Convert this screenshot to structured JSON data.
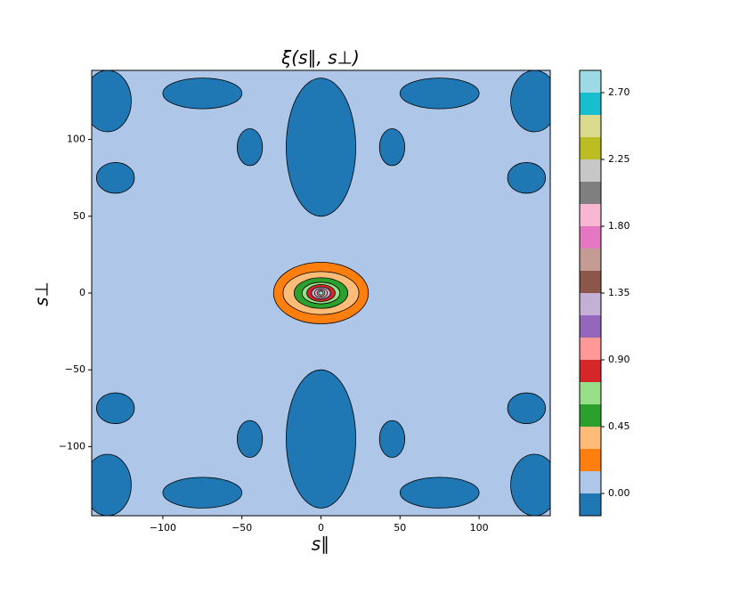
{
  "chart_data": {
    "type": "contour",
    "title": "ξ(s∥, s⊥)",
    "x_label": "s∥",
    "y_label": "s⊥",
    "xlim": [
      -145,
      145
    ],
    "ylim": [
      -145,
      145
    ],
    "xticks": [
      {
        "value": -100,
        "label": "−100"
      },
      {
        "value": -50,
        "label": "−50"
      },
      0,
      50,
      100
    ],
    "yticks": [
      {
        "value": -100,
        "label": "−100"
      },
      {
        "value": -50,
        "label": "−50"
      },
      0,
      50,
      100
    ],
    "levels": [
      -0.15,
      0,
      0.15,
      0.3,
      0.45,
      0.6,
      0.75,
      0.9,
      1.05,
      1.2,
      1.35,
      1.5,
      1.65,
      1.8,
      1.95,
      2.1,
      2.25,
      2.4,
      2.55,
      2.7,
      2.85
    ],
    "colors": [
      "#1f77b4",
      "#aec7e8",
      "#ff7f0e",
      "#ffbb78",
      "#2ca02c",
      "#98df8a",
      "#d62728",
      "#ff9896",
      "#9467bd",
      "#c5b0d5",
      "#8c564b",
      "#c49c94",
      "#e377c2",
      "#f7b6d2",
      "#7f7f7f",
      "#c7c7c7",
      "#bcbd22",
      "#dbdb8d",
      "#17becf",
      "#9edae5"
    ],
    "colorbar_ticks": [
      {
        "value": 0,
        "label": "0.00"
      },
      {
        "value": 0.45,
        "label": "0.45"
      },
      {
        "value": 0.9,
        "label": "0.90"
      },
      {
        "value": 1.35,
        "label": "1.35"
      },
      {
        "value": 1.8,
        "label": "1.80"
      },
      {
        "value": 2.25,
        "label": "2.25"
      },
      {
        "value": 2.7,
        "label": "2.70"
      }
    ],
    "regions": [
      {
        "level": -0.15,
        "x": -135,
        "y": 125,
        "rx": 15,
        "ry": 20
      },
      {
        "level": -0.15,
        "x": 135,
        "y": 125,
        "rx": 15,
        "ry": 20
      },
      {
        "level": -0.15,
        "x": -135,
        "y": -125,
        "rx": 15,
        "ry": 20
      },
      {
        "level": -0.15,
        "x": 135,
        "y": -125,
        "rx": 15,
        "ry": 20
      },
      {
        "level": -0.15,
        "x": 0,
        "y": 95,
        "rx": 22,
        "ry": 45
      },
      {
        "level": -0.15,
        "x": 0,
        "y": -95,
        "rx": 22,
        "ry": 45
      },
      {
        "level": -0.15,
        "x": -75,
        "y": 130,
        "rx": 25,
        "ry": 10
      },
      {
        "level": -0.15,
        "x": 75,
        "y": 130,
        "rx": 25,
        "ry": 10
      },
      {
        "level": -0.15,
        "x": -75,
        "y": -130,
        "rx": 25,
        "ry": 10
      },
      {
        "level": -0.15,
        "x": 75,
        "y": -130,
        "rx": 25,
        "ry": 10
      },
      {
        "level": -0.15,
        "x": -130,
        "y": 75,
        "rx": 12,
        "ry": 10
      },
      {
        "level": -0.15,
        "x": 130,
        "y": 75,
        "rx": 12,
        "ry": 10
      },
      {
        "level": -0.15,
        "x": -130,
        "y": -75,
        "rx": 12,
        "ry": 10
      },
      {
        "level": -0.15,
        "x": 130,
        "y": -75,
        "rx": 12,
        "ry": 10
      },
      {
        "level": -0.15,
        "x": -45,
        "y": 95,
        "rx": 8,
        "ry": 12
      },
      {
        "level": -0.15,
        "x": 45,
        "y": 95,
        "rx": 8,
        "ry": 12
      },
      {
        "level": -0.15,
        "x": -45,
        "y": -95,
        "rx": 8,
        "ry": 12
      },
      {
        "level": -0.15,
        "x": 45,
        "y": -95,
        "rx": 8,
        "ry": 12
      },
      {
        "level": 0.15,
        "x": 0,
        "y": 0,
        "rx": 30,
        "ry": 20
      },
      {
        "level": 0.3,
        "x": 0,
        "y": 0,
        "rx": 24,
        "ry": 14
      },
      {
        "level": 0.45,
        "x": 0,
        "y": 0,
        "rx": 17,
        "ry": 10
      },
      {
        "level": 0.6,
        "x": 0,
        "y": 0,
        "rx": 12,
        "ry": 7
      },
      {
        "level": 0.75,
        "x": 0,
        "y": 0,
        "rx": 9,
        "ry": 5.5
      },
      {
        "level": 1.2,
        "x": 0,
        "y": 0,
        "rx": 6,
        "ry": 4
      },
      {
        "level": 1.8,
        "x": 0,
        "y": 0,
        "rx": 4,
        "ry": 3
      },
      {
        "level": 2.4,
        "x": 0,
        "y": 0,
        "rx": 2.5,
        "ry": 2
      },
      {
        "level": 2.7,
        "x": 0,
        "y": 0,
        "rx": 1.5,
        "ry": 1.2
      }
    ]
  }
}
